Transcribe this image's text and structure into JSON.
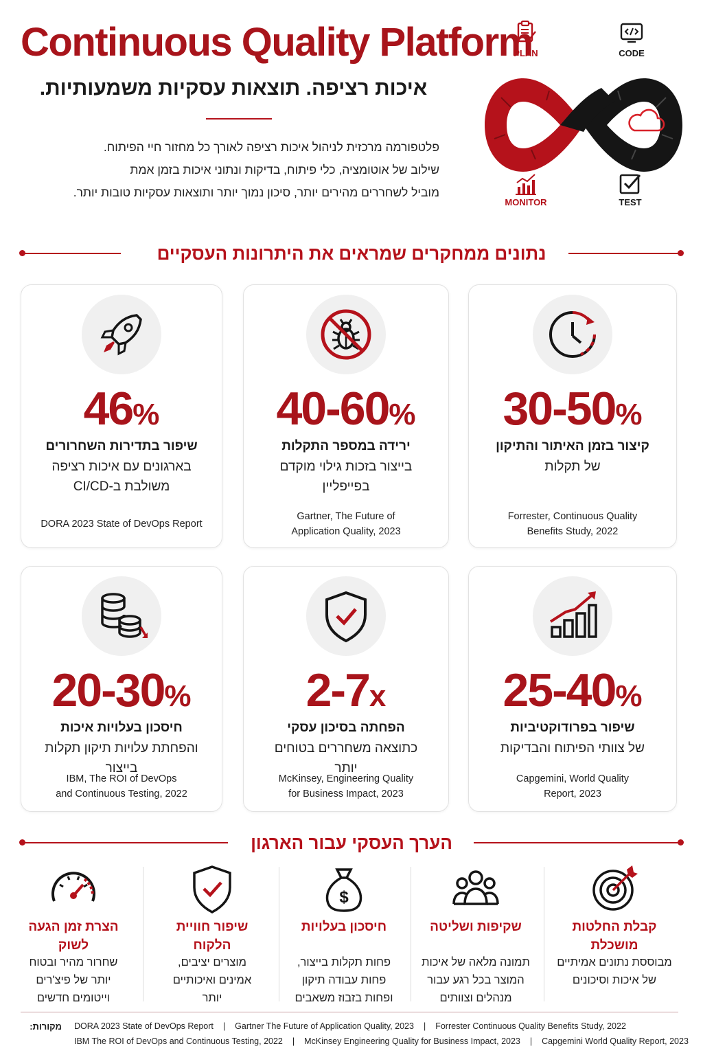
{
  "header": {
    "title": "Continuous Quality Platform",
    "subtitle": "איכות רציפה. תוצאות עסקיות משמעותיות.",
    "intro_lines": [
      "פלטפורמה מרכזית לניהול איכות רציפה לאורך כל מחזור חיי הפיתוח.",
      "שילוב של אוטומציה, כלי פיתוח, בדיקות ונתוני איכות בזמן אמת",
      "מוביל לשחררים מהירים יותר, סיכון נמוך יותר ותוצאות עסקיות טובות יותר."
    ]
  },
  "loop": {
    "stages": [
      {
        "label": "PLAN",
        "icon": "clipboard-icon",
        "color": "#b5121b"
      },
      {
        "label": "CODE",
        "icon": "code-icon",
        "color": "#1a1a1a"
      },
      {
        "label": "MONITOR",
        "icon": "chart-icon",
        "color": "#b5121b"
      },
      {
        "label": "TEST",
        "icon": "checkbox-icon",
        "color": "#1a1a1a"
      }
    ],
    "center_icon": "cloud-icon"
  },
  "research_section": {
    "title": "נתונים ממחקרים שמראים את היתרונות העסקיים"
  },
  "stats": [
    {
      "icon": "clock-icon",
      "value": "30-50",
      "suffix": "%",
      "headline": "קיצור בזמן האיתור והתיקון",
      "desc_lines": [
        "של תקלות"
      ],
      "source_lines": [
        "Forrester, Continuous Quality",
        "Benefits Study, 2022"
      ]
    },
    {
      "icon": "no-bug-icon",
      "value": "40-60",
      "suffix": "%",
      "headline": "ירידה במספר התקלות",
      "desc_lines": [
        "בייצור בזכות גילוי מוקדם",
        "בפייפליין"
      ],
      "source_lines": [
        "Gartner, The Future of",
        "Application Quality, 2023"
      ]
    },
    {
      "icon": "rocket-icon",
      "value": "46",
      "suffix": "%",
      "headline": "שיפור בתדירות השחרורים",
      "desc_lines": [
        "בארגונים עם איכות רציפה",
        "משולבת ב-CI/CD"
      ],
      "source_lines": [
        "DORA 2023 State of DevOps Report"
      ]
    },
    {
      "icon": "growth-chart-icon",
      "value": "25-40",
      "suffix": "%",
      "headline": "שיפור בפרודוקטיביות",
      "desc_lines": [
        "של צוותי הפיתוח והבדיקות"
      ],
      "source_lines": [
        "Capgemini, World Quality",
        "Report, 2023"
      ]
    },
    {
      "icon": "shield-check-icon",
      "value": "2-7",
      "suffix": "x",
      "headline": "הפחתה בסיכון עסקי",
      "desc_lines": [
        "כתוצאה משחררים בטוחים",
        "יותר"
      ],
      "source_lines": [
        "McKinsey, Engineering Quality",
        "for Business Impact, 2023"
      ]
    },
    {
      "icon": "coins-icon",
      "value": "20-30",
      "suffix": "%",
      "headline": "חיסכון בעלויות איכות",
      "desc_lines": [
        "והפחתת עלויות תיקון תקלות",
        "בייצור"
      ],
      "source_lines": [
        "IBM, The ROI of DevOps",
        "and Continuous Testing, 2022"
      ]
    }
  ],
  "value_section": {
    "title": "הערך העסקי עבור הארגון",
    "items": [
      {
        "icon": "target-icon",
        "headline_lines": [
          "קבלת החלטות",
          "מושכלת"
        ],
        "desc_lines": [
          "מבוססת נתונים אמיתיים",
          "של איכות וסיכונים"
        ]
      },
      {
        "icon": "team-icon",
        "headline_lines": [
          "שקיפות ושליטה"
        ],
        "desc_lines": [
          "תמונה מלאה של איכות",
          "המוצר בכל רגע עבור",
          "מנהלים וצוותים"
        ]
      },
      {
        "icon": "money-bag-icon",
        "headline_lines": [
          "חיסכון בעלויות"
        ],
        "desc_lines": [
          "פחות תקלות בייצור,",
          "פחות עבודה תיקון",
          "ופחות בזבוז משאבים"
        ]
      },
      {
        "icon": "shield-check-icon",
        "headline_lines": [
          "שיפור חוויית",
          "הלקוח"
        ],
        "desc_lines": [
          "מוצרים יציבים,",
          "אמינים ואיכותיים",
          "יותר"
        ]
      },
      {
        "icon": "speedometer-icon",
        "headline_lines": [
          "הצרת זמן הגעה",
          "לשוק"
        ],
        "desc_lines": [
          "שחרור מהיר ובטוח",
          "יותר של פיצ'רים",
          "וייטומים חדשים"
        ]
      }
    ]
  },
  "sources": {
    "label": "מקורות:",
    "row1": [
      "DORA 2023 State of DevOps Report",
      "Gartner The Future of Application Quality, 2023",
      "Forrester Continuous Quality Benefits Study, 2022"
    ],
    "row2": [
      "IBM The ROI of DevOps and Continuous Testing, 2022",
      "McKinsey Engineering Quality for Business Impact, 2023",
      "Capgemini World Quality Report, 2023"
    ],
    "separator": "|"
  },
  "colors": {
    "accent": "#b5121b",
    "dark": "#1a1a1a",
    "card_border": "#e2e2e2",
    "icon_bg": "#f0f0f0"
  }
}
